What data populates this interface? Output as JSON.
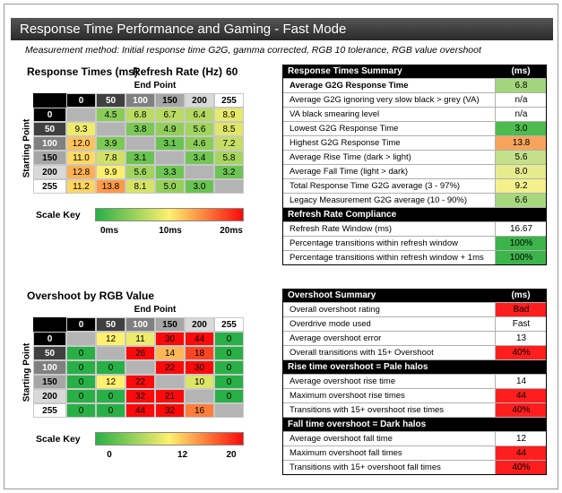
{
  "header": {
    "title": "Response Time Performance and Gaming - Fast Mode"
  },
  "subtitle": "Measurement method: Initial response time G2G, gamma corrected, RGB 10 tolerance, RGB value overshoot",
  "response_times": {
    "title": "Response Times (ms)",
    "refresh_label": "Refresh Rate (Hz)",
    "refresh_value": "60",
    "end_point": "End Point",
    "starting_point": "Starting Point",
    "levels": [
      "0",
      "50",
      "100",
      "150",
      "200",
      "255"
    ],
    "rows": [
      [
        null,
        "4.5",
        "6.8",
        "6.7",
        "6.4",
        "8.9"
      ],
      [
        "9.3",
        null,
        "3.8",
        "4.9",
        "5.6",
        "8.5"
      ],
      [
        "12.0",
        "3.9",
        null,
        "3.1",
        "4.6",
        "7.2"
      ],
      [
        "11.0",
        "7.8",
        "3.1",
        null,
        "3.4",
        "5.8"
      ],
      [
        "12.8",
        "9.9",
        "5.6",
        "3.3",
        null,
        "3.2"
      ],
      [
        "11.2",
        "13.8",
        "8.1",
        "5.0",
        "3.0",
        null
      ]
    ],
    "scale_key": {
      "label": "Scale Key",
      "ticks": [
        {
          "value": 0,
          "label": "0ms"
        },
        {
          "value": 10,
          "label": "10ms"
        },
        {
          "value": 20,
          "label": "20ms"
        }
      ]
    }
  },
  "overshoot": {
    "title": "Overshoot by RGB Value",
    "end_point": "End Point",
    "starting_point": "Starting Point",
    "levels": [
      "0",
      "50",
      "100",
      "150",
      "200",
      "255"
    ],
    "rows": [
      [
        null,
        12,
        11,
        30,
        44,
        0
      ],
      [
        0,
        null,
        26,
        14,
        18,
        0
      ],
      [
        0,
        0,
        null,
        22,
        30,
        0
      ],
      [
        0,
        12,
        22,
        null,
        10,
        0
      ],
      [
        0,
        0,
        32,
        21,
        null,
        0
      ],
      [
        0,
        0,
        44,
        32,
        16,
        null
      ]
    ],
    "scale_key": {
      "label": "Scale Key",
      "ticks": [
        0,
        12,
        20
      ]
    }
  },
  "response_summary": {
    "sections": [
      {
        "title": "Response Times Summary",
        "unit": "(ms)",
        "rows": [
          {
            "label": "Average G2G Response Time",
            "value": "6.8",
            "color": "#a3d67c"
          },
          {
            "label": "Average G2G ignoring very slow black > grey (VA)",
            "value": "n/a",
            "color": "#ffffff"
          },
          {
            "label": "VA black smearing level",
            "value": "n/a",
            "color": "#ffffff"
          },
          {
            "label": "Lowest G2G Response Time",
            "value": "3.0",
            "color": "#4dbb4d"
          },
          {
            "label": "Highest G2G Response Time",
            "value": "13.8",
            "color": "#f6a35c"
          },
          {
            "label": "Average Rise Time (dark > light)",
            "value": "5.6",
            "color": "#c4e08a"
          },
          {
            "label": "Average Fall Time (light > dark)",
            "value": "8.0",
            "color": "#e6ec8e"
          },
          {
            "label": "Total Response Time G2G average (3 - 97%)",
            "value": "9.2",
            "color": "#f4f08c"
          },
          {
            "label": "Legacy Measurement G2G average (10 - 90%)",
            "value": "6.6",
            "color": "#a8d87e"
          }
        ]
      },
      {
        "title": "Refresh Rate Compliance",
        "rows": [
          {
            "label": "Refresh Rate Window (ms)",
            "value": "16.67",
            "color": "#ffffff"
          },
          {
            "label": "Percentage transitions within refresh window",
            "value": "100%",
            "color": "#3cb44a"
          },
          {
            "label": "Percentage transitions within refresh window + 1ms",
            "value": "100%",
            "color": "#3cb44a"
          }
        ]
      }
    ]
  },
  "overshoot_summary": {
    "sections": [
      {
        "title": "Overshoot Summary",
        "unit": "(ms)",
        "rows": [
          {
            "label": "Overall overshoot rating",
            "value": "Bad",
            "color": "#ff1e1e"
          },
          {
            "label": "Overdrive mode used",
            "value": "Fast",
            "color": "#ffffff"
          },
          {
            "label": "Average overshoot error",
            "value": "13",
            "color": "#ffffff"
          },
          {
            "label": "Overall transitions with 15+ Overshoot",
            "value": "40%",
            "color": "#ff1e1e"
          }
        ]
      },
      {
        "title": "Rise time overshoot = Pale halos",
        "rows": [
          {
            "label": "Average overshoot rise time",
            "value": "14",
            "color": "#ffffff"
          },
          {
            "label": "Maximum overshoot rise times",
            "value": "44",
            "color": "#ff1e1e"
          },
          {
            "label": "Transitions with 15+ overshoot rise times",
            "value": "40%",
            "color": "#ff1e1e"
          }
        ]
      },
      {
        "title": "Fall time overshoot = Dark halos",
        "rows": [
          {
            "label": "Average overshoot fall time",
            "value": "12",
            "color": "#ffffff"
          },
          {
            "label": "Maximum overshoot fall times",
            "value": "44",
            "color": "#ff1e1e"
          },
          {
            "label": "Transitions with 15+ overshoot fall times",
            "value": "40%",
            "color": "#ff1e1e"
          }
        ]
      }
    ]
  }
}
